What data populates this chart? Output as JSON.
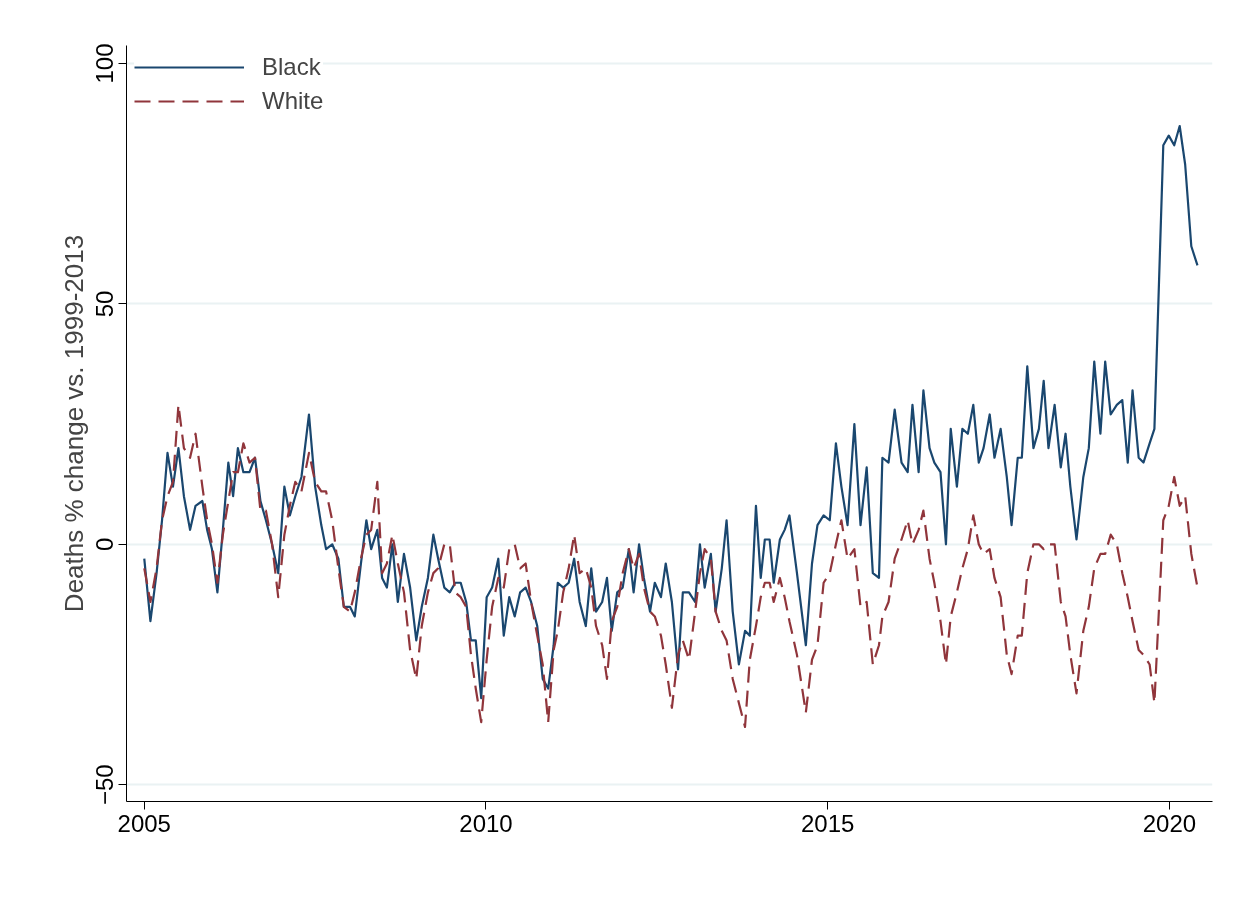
{
  "chart_data": {
    "type": "line",
    "ylabel": "Deaths % change vs. 1999-2013",
    "x": [
      2005.0,
      2005.09,
      2005.18,
      2005.26,
      2005.34,
      2005.42,
      2005.5,
      2005.58,
      2005.67,
      2005.75,
      2005.85,
      2005.92,
      2005.99,
      2006.07,
      2006.15,
      2006.23,
      2006.3,
      2006.37,
      2006.45,
      2006.54,
      2006.62,
      2006.7,
      2006.78,
      2006.87,
      2006.96,
      2007.05,
      2007.13,
      2007.21,
      2007.3,
      2007.41,
      2007.5,
      2007.59,
      2007.66,
      2007.75,
      2007.84,
      2007.92,
      2008.01,
      2008.08,
      2008.17,
      2008.25,
      2008.32,
      2008.41,
      2008.48,
      2008.55,
      2008.63,
      2008.71,
      2008.8,
      2008.89,
      2008.98,
      2009.06,
      2009.15,
      2009.23,
      2009.3,
      2009.39,
      2009.47,
      2009.55,
      2009.63,
      2009.71,
      2009.78,
      2009.85,
      2009.93,
      2010.01,
      2010.09,
      2010.18,
      2010.26,
      2010.34,
      2010.42,
      2010.5,
      2010.58,
      2010.66,
      2010.75,
      2010.83,
      2010.91,
      2010.99,
      2011.05,
      2011.13,
      2011.21,
      2011.29,
      2011.37,
      2011.46,
      2011.54,
      2011.61,
      2011.7,
      2011.77,
      2011.84,
      2011.92,
      2012.0,
      2012.09,
      2012.16,
      2012.24,
      2012.31,
      2012.4,
      2012.47,
      2012.56,
      2012.63,
      2012.72,
      2012.81,
      2012.88,
      2012.97,
      2013.06,
      2013.13,
      2013.2,
      2013.29,
      2013.36,
      2013.45,
      2013.52,
      2013.61,
      2013.7,
      2013.79,
      2013.86,
      2013.95,
      2014.02,
      2014.08,
      2014.15,
      2014.21,
      2014.3,
      2014.37,
      2014.44,
      2014.55,
      2014.68,
      2014.77,
      2014.85,
      2014.94,
      2015.03,
      2015.12,
      2015.2,
      2015.29,
      2015.39,
      2015.48,
      2015.57,
      2015.66,
      2015.75,
      2015.8,
      2015.89,
      2015.98,
      2016.08,
      2016.17,
      2016.24,
      2016.33,
      2016.4,
      2016.49,
      2016.56,
      2016.65,
      2016.73,
      2016.8,
      2016.89,
      2016.97,
      2017.05,
      2017.13,
      2017.21,
      2017.28,
      2017.37,
      2017.44,
      2017.53,
      2017.62,
      2017.69,
      2017.78,
      2017.84,
      2017.92,
      2018.01,
      2018.09,
      2018.16,
      2018.23,
      2018.32,
      2018.41,
      2018.48,
      2018.55,
      2018.64,
      2018.74,
      2018.82,
      2018.9,
      2018.99,
      2019.06,
      2019.14,
      2019.23,
      2019.31,
      2019.39,
      2019.46,
      2019.55,
      2019.62,
      2019.71,
      2019.78,
      2019.91,
      2019.99,
      2020.07,
      2020.15,
      2020.23,
      2020.32,
      2020.41
    ],
    "series": [
      {
        "name": "Black",
        "color": "#1a476f",
        "line_style": "solid",
        "values": [
          -3,
          -16,
          -6,
          5,
          19,
          12,
          20,
          10,
          3,
          8,
          9,
          3,
          -1,
          -10,
          3,
          17,
          10,
          20,
          15,
          15,
          18,
          9,
          5,
          0,
          -6,
          12,
          6,
          10,
          14,
          27,
          12,
          4,
          -1,
          0,
          -3,
          -13,
          -13,
          -15,
          -4,
          5,
          -1,
          3,
          -7,
          -9,
          0,
          -12,
          -2,
          -9,
          -20,
          -13,
          -7,
          2,
          -3,
          -9,
          -10,
          -8,
          -8,
          -12,
          -20,
          -20,
          -32,
          -11,
          -9,
          -3,
          -19,
          -11,
          -15,
          -10,
          -9,
          -12,
          -17,
          -28,
          -30,
          -21,
          -8,
          -9,
          -8,
          -3,
          -12,
          -17,
          -5,
          -14,
          -12,
          -7,
          -18,
          -10,
          -9,
          -1,
          -10,
          0,
          -7,
          -14,
          -8,
          -11,
          -4,
          -12,
          -26,
          -10,
          -10,
          -12,
          0,
          -9,
          -2,
          -14,
          -5,
          5,
          -14,
          -25,
          -18,
          -19,
          8,
          -7,
          1,
          1,
          -8,
          1,
          3,
          6,
          -6,
          -21,
          -4,
          4,
          6,
          5,
          21,
          12,
          4,
          25,
          4,
          16,
          -6,
          -7,
          18,
          17,
          28,
          17,
          15,
          29,
          15,
          32,
          20,
          17,
          15,
          0,
          24,
          12,
          24,
          23,
          29,
          17,
          20,
          27,
          18,
          24,
          14,
          4,
          18,
          18,
          37,
          20,
          24,
          34,
          20,
          29,
          16,
          23,
          12,
          1,
          14,
          20,
          38,
          23,
          38,
          27,
          29,
          30,
          17,
          32,
          18,
          17,
          21,
          24,
          83,
          85,
          83,
          87,
          79,
          62,
          58
        ]
      },
      {
        "name": "White",
        "color": "#90353b",
        "line_style": "dashed",
        "values": [
          -5,
          -12,
          -5,
          5,
          10,
          13,
          29,
          20,
          18,
          23,
          12,
          5,
          0,
          -8,
          2,
          9,
          15,
          15,
          21,
          17,
          18,
          7,
          7,
          0,
          -11,
          2,
          8,
          13,
          11,
          19,
          13,
          11,
          11,
          5,
          -5,
          -13,
          -14,
          -10,
          -3,
          2,
          3,
          13,
          -6,
          -4,
          2,
          -4,
          -10,
          -22,
          -28,
          -17,
          -10,
          -6,
          -5,
          0,
          0,
          -10,
          -11,
          -13,
          -23,
          -30,
          -37,
          -24,
          -13,
          -7,
          -9,
          -1,
          0,
          -5,
          -4,
          -12,
          -19,
          -25,
          -37,
          -22,
          -18,
          -10,
          -5,
          2,
          -6,
          -5,
          -9,
          -17,
          -21,
          -28,
          -16,
          -13,
          -6,
          -1,
          -5,
          -2,
          -9,
          -14,
          -15,
          -19,
          -25,
          -34,
          -23,
          -20,
          -24,
          -14,
          -6,
          -1,
          -3,
          -14,
          -18,
          -20,
          -28,
          -33,
          -38,
          -24,
          -17,
          -11,
          -8,
          -8,
          -12,
          -7,
          -11,
          -16,
          -23,
          -35,
          -24,
          -21,
          -8,
          -6,
          0,
          5,
          -3,
          -1,
          -13,
          -12,
          -25,
          -21,
          -15,
          -12,
          -3,
          1,
          5,
          0,
          3,
          7,
          -3,
          -8,
          -16,
          -25,
          -15,
          -10,
          -5,
          -1,
          6,
          0,
          -2,
          -1,
          -7,
          -11,
          -23,
          -27,
          -19,
          -19,
          -6,
          0,
          0,
          -1,
          0,
          0,
          -12,
          -15,
          -23,
          -31,
          -18,
          -13,
          -5,
          -2,
          -2,
          2,
          0,
          -6,
          -11,
          -16,
          -22,
          -23,
          -25,
          -33,
          5,
          8,
          14,
          8,
          10,
          -2,
          -9
        ]
      }
    ],
    "xlim": [
      2004.74,
      2020.63
    ],
    "xticks": [
      2005,
      2010,
      2015,
      2020
    ],
    "ylim": [
      -53.5,
      103.75
    ],
    "yticks": [
      -50,
      0,
      50,
      100
    ],
    "grid": "y",
    "legend": "top left",
    "marker": "none"
  }
}
